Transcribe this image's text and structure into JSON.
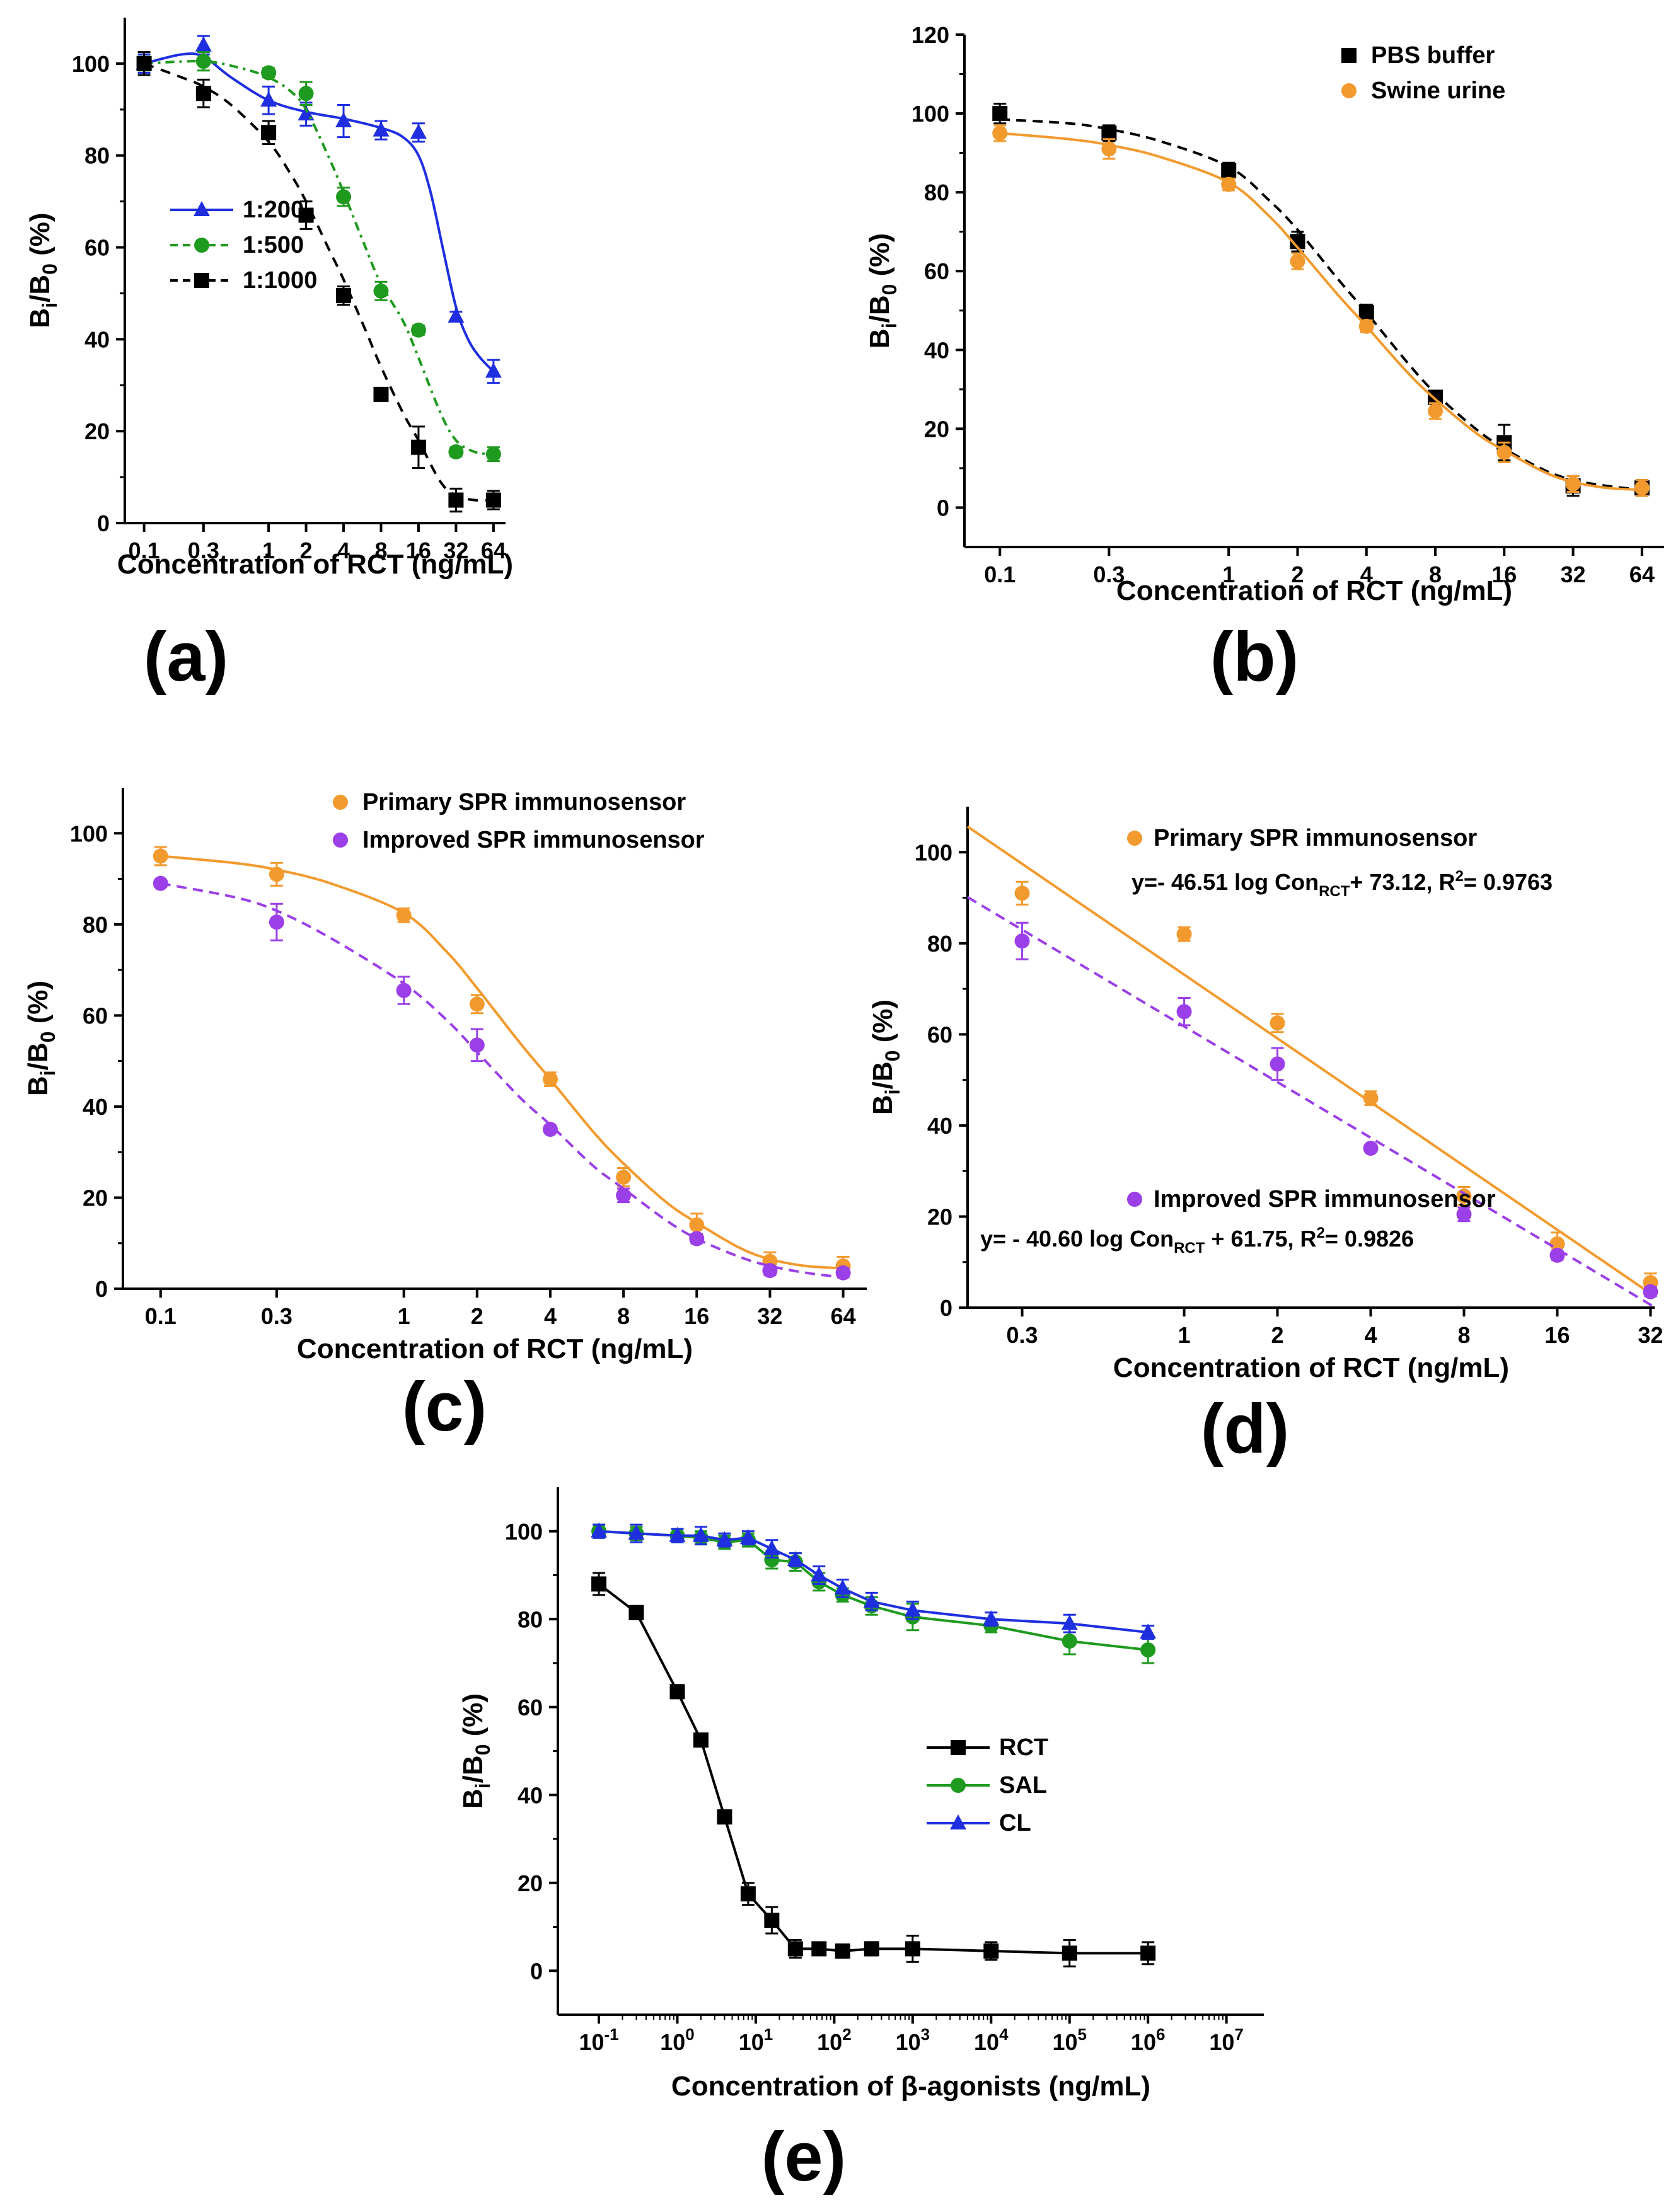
{
  "colors": {
    "black": "#000000",
    "blue": "#1f2fe0",
    "green": "#1e9a1e",
    "orange": "#f39a2e",
    "purple": "#9b3fe8"
  },
  "chart_data": [
    {
      "panel": "a",
      "panel_label": "(a)",
      "type": "line",
      "xscale": "log",
      "xlim": [
        0.07,
        80
      ],
      "ylim": [
        0,
        110
      ],
      "xticks": [
        0.1,
        0.3,
        1,
        2,
        4,
        8,
        16,
        32,
        64
      ],
      "xtick_labels": [
        "0.1",
        "0.3",
        "1",
        "2",
        "4",
        "8",
        "16",
        "32",
        "64"
      ],
      "yticks": [
        0,
        20,
        40,
        60,
        80,
        100
      ],
      "ytick_labels": [
        "0",
        "20",
        "40",
        "60",
        "80",
        "100"
      ],
      "xlabel": "Concentration of RCT (ng/mL)",
      "ylabel": {
        "main": "B",
        "sub1": "i",
        "mid": "/B",
        "sub2": "0",
        "tail": " (%)"
      },
      "legend": "mid-left",
      "series": [
        {
          "name": "1:200",
          "color": "#1f2fe0",
          "marker": "triangle",
          "dash": "",
          "x": [
            0.1,
            0.3,
            1,
            2,
            4,
            8,
            16,
            32,
            64
          ],
          "y": [
            100,
            104,
            92,
            89,
            87.5,
            85.5,
            85,
            45,
            33
          ],
          "err": [
            2,
            2,
            3,
            2.5,
            3.5,
            2,
            2,
            1,
            2.5
          ],
          "fit_x": [
            0.1,
            0.2,
            0.3,
            0.5,
            1,
            2,
            4,
            8,
            12,
            16,
            20,
            25,
            32,
            40,
            50,
            64
          ],
          "fit_y": [
            100,
            102,
            101.5,
            97,
            92,
            89.5,
            88,
            86,
            84,
            80,
            72,
            60,
            47,
            40,
            36,
            33
          ]
        },
        {
          "name": "1:500",
          "color": "#1e9a1e",
          "marker": "circle",
          "dash": "14,8,4,8",
          "x": [
            0.1,
            0.3,
            1,
            2,
            4,
            8,
            16,
            32,
            64
          ],
          "y": [
            100,
            100.5,
            98,
            93.5,
            71,
            50.5,
            42,
            15.5,
            15
          ],
          "err": [
            1.5,
            2,
            1,
            2.5,
            2,
            2,
            1,
            1,
            1.5
          ],
          "fit_x": [
            0.1,
            0.3,
            0.6,
            1,
            1.5,
            2,
            3,
            4,
            6,
            8,
            12,
            16,
            24,
            32,
            45,
            64
          ],
          "fit_y": [
            100,
            100.5,
            99,
            97,
            94,
            90,
            80,
            72,
            60,
            52,
            44,
            36,
            24,
            18,
            15.5,
            15
          ]
        },
        {
          "name": "1:1000",
          "color": "#000000",
          "marker": "square",
          "dash": "16,12",
          "x": [
            0.1,
            0.3,
            1,
            2,
            4,
            8,
            16,
            32,
            64
          ],
          "y": [
            100,
            93.5,
            85,
            67,
            49.5,
            28,
            16.5,
            5,
            5
          ],
          "err": [
            2.5,
            3,
            2.5,
            3,
            2,
            1,
            4.5,
            2.5,
            2
          ],
          "fit_x": [
            0.1,
            0.2,
            0.3,
            0.5,
            1,
            1.5,
            2,
            3,
            4,
            6,
            8,
            12,
            16,
            24,
            32,
            45,
            64
          ],
          "fit_y": [
            100,
            97,
            95,
            91,
            83,
            76,
            70,
            60,
            53,
            42,
            34,
            24,
            18,
            9,
            6,
            5,
            5
          ]
        }
      ]
    },
    {
      "panel": "b",
      "panel_label": "(b)",
      "type": "line",
      "xscale": "log",
      "xlim": [
        0.07,
        80
      ],
      "ylim": [
        -10,
        120
      ],
      "xticks": [
        0.1,
        0.3,
        1,
        2,
        4,
        8,
        16,
        32,
        64
      ],
      "xtick_labels": [
        "0.1",
        "0.3",
        "1",
        "2",
        "4",
        "8",
        "16",
        "32",
        "64"
      ],
      "yticks": [
        0,
        20,
        40,
        60,
        80,
        100,
        120
      ],
      "ytick_labels": [
        "0",
        "20",
        "40",
        "60",
        "80",
        "100",
        "120"
      ],
      "xlabel": "Concentration of RCT (ng/mL)",
      "ylabel": {
        "main": "B",
        "sub1": "i",
        "mid": "/B",
        "sub2": "0",
        "tail": " (%)"
      },
      "legend": "top-center",
      "series": [
        {
          "name": "PBS buffer",
          "color": "#000000",
          "marker": "square",
          "dash": "16,10",
          "x": [
            0.1,
            0.3,
            1,
            2,
            4,
            8,
            16,
            32,
            64
          ],
          "y": [
            100,
            95,
            85.5,
            67.5,
            49.5,
            28,
            16.5,
            5.5,
            5
          ],
          "err": [
            2.5,
            2,
            2,
            2.5,
            2,
            1,
            4.5,
            2.5,
            2
          ],
          "fit_x": [
            0.1,
            0.2,
            0.3,
            0.5,
            1,
            1.5,
            2,
            3,
            4,
            6,
            8,
            12,
            16,
            24,
            32,
            45,
            64
          ],
          "fit_y": [
            98.5,
            97.5,
            96,
            93,
            86.5,
            78,
            70.5,
            58,
            49.5,
            37,
            29,
            20,
            15,
            9.5,
            7,
            5.5,
            4.5
          ]
        },
        {
          "name": "Swine urine",
          "color": "#f39a2e",
          "marker": "circle",
          "dash": "",
          "x": [
            0.1,
            0.3,
            1,
            2,
            4,
            8,
            16,
            32,
            64
          ],
          "y": [
            95,
            91,
            82,
            62.5,
            46,
            24.5,
            14,
            6,
            5
          ],
          "err": [
            2,
            2.5,
            1.5,
            2,
            1.5,
            2,
            2.5,
            2,
            2
          ],
          "fit_x": [
            0.1,
            0.2,
            0.3,
            0.5,
            1,
            1.5,
            2,
            3,
            4,
            6,
            8,
            12,
            16,
            24,
            32,
            45,
            64
          ],
          "fit_y": [
            95,
            93.5,
            92,
            89,
            82.5,
            74,
            66,
            54,
            46,
            34.5,
            27.5,
            19,
            14.5,
            9,
            6.5,
            5,
            4.5
          ]
        }
      ]
    },
    {
      "panel": "c",
      "panel_label": "(c)",
      "type": "line",
      "xscale": "log",
      "xlim": [
        0.07,
        80
      ],
      "ylim": [
        0,
        110
      ],
      "xticks": [
        0.1,
        0.3,
        1,
        2,
        4,
        8,
        16,
        32,
        64
      ],
      "xtick_labels": [
        "0.1",
        "0.3",
        "1",
        "2",
        "4",
        "8",
        "16",
        "32",
        "64"
      ],
      "yticks": [
        0,
        20,
        40,
        60,
        80,
        100
      ],
      "ytick_labels": [
        "0",
        "20",
        "40",
        "60",
        "80",
        "100"
      ],
      "xlabel": "Concentration of RCT (ng/mL)",
      "ylabel": {
        "main": "B",
        "sub1": "i",
        "mid": "/B",
        "sub2": "0",
        "tail": " (%)"
      },
      "legend": "top-center",
      "series": [
        {
          "name": "Primary SPR immunosensor",
          "color": "#f39a2e",
          "marker": "circle",
          "dash": "",
          "x": [
            0.1,
            0.3,
            1,
            2,
            4,
            8,
            16,
            32,
            64
          ],
          "y": [
            95,
            91,
            82,
            62.5,
            46,
            24.5,
            14,
            6,
            5
          ],
          "err": [
            2,
            2.5,
            1.5,
            2,
            1.5,
            2,
            2.5,
            2,
            2
          ],
          "fit_x": [
            0.1,
            0.2,
            0.3,
            0.5,
            1,
            1.5,
            2,
            3,
            4,
            6,
            8,
            12,
            16,
            24,
            32,
            45,
            64
          ],
          "fit_y": [
            95,
            93.5,
            92,
            89,
            82.5,
            74,
            66,
            54,
            46,
            34.5,
            27.5,
            19,
            14.5,
            9,
            6.5,
            5,
            4.5
          ]
        },
        {
          "name": "Improved SPR immunosensor",
          "color": "#9b3fe8",
          "marker": "circle",
          "dash": "16,10",
          "x": [
            0.1,
            0.3,
            1,
            2,
            4,
            8,
            16,
            32,
            64
          ],
          "y": [
            89,
            80.5,
            65.5,
            53.5,
            35,
            20.5,
            11,
            4,
            3.5
          ],
          "err": [
            0.5,
            4,
            3,
            3.5,
            0.5,
            1.5,
            1,
            1,
            1
          ],
          "fit_x": [
            0.1,
            0.2,
            0.3,
            0.5,
            1,
            1.5,
            2,
            3,
            4,
            6,
            8,
            12,
            16,
            24,
            32,
            45,
            64
          ],
          "fit_y": [
            89,
            86,
            83,
            77,
            67,
            59,
            52,
            42,
            36,
            27,
            22,
            15,
            11,
            7,
            5,
            3.5,
            2.5
          ]
        }
      ]
    },
    {
      "panel": "d",
      "panel_label": "(d)",
      "type": "scatter",
      "xscale": "log",
      "xlim": [
        0.2,
        33
      ],
      "ylim": [
        0,
        110
      ],
      "xticks": [
        0.3,
        1,
        2,
        4,
        8,
        16,
        32
      ],
      "xtick_labels": [
        "0.3",
        "1",
        "2",
        "4",
        "8",
        "16",
        "32"
      ],
      "yticks": [
        0,
        20,
        40,
        60,
        80,
        100
      ],
      "ytick_labels": [
        "0",
        "20",
        "40",
        "60",
        "80",
        "100"
      ],
      "xlabel": "Concentration of RCT (ng/mL)",
      "ylabel": {
        "main": "B",
        "sub1": "i",
        "mid": "/B",
        "sub2": "0",
        "tail": " (%)"
      },
      "legend": "top-right",
      "series": [
        {
          "name": "Primary SPR immunosensor",
          "color": "#f39a2e",
          "marker": "circle",
          "dash": "",
          "equation": {
            "pre": "y=- 46.51 log Con",
            "sub": "RCT",
            "post": "+ 73.12, R",
            "sup": "2",
            "end": "= 0.9763"
          },
          "x": [
            0.3,
            1,
            2,
            4,
            8,
            16,
            32
          ],
          "y": [
            91,
            82,
            62.5,
            46,
            24.5,
            14,
            5.5
          ],
          "err": [
            2.5,
            1.5,
            2,
            1.5,
            2,
            2.5,
            2
          ],
          "slope": -46.51,
          "intercept": 73.12
        },
        {
          "name": "Improved SPR immunosensor",
          "color": "#9b3fe8",
          "marker": "circle",
          "dash": "16,10",
          "equation": {
            "pre": "y= - 40.60 log Con",
            "sub": "RCT",
            "post": " + 61.75, R",
            "sup": "2",
            "end": "= 0.9826"
          },
          "x": [
            0.3,
            1,
            2,
            4,
            8,
            16,
            32
          ],
          "y": [
            80.5,
            65,
            53.5,
            35,
            20.5,
            11.5,
            3.5
          ],
          "err": [
            4,
            3,
            3.5,
            0.5,
            1.5,
            1,
            1
          ],
          "slope": -40.6,
          "intercept": 61.75
        }
      ]
    },
    {
      "panel": "e",
      "panel_label": "(e)",
      "type": "line",
      "xscale": "log",
      "xlim": [
        0.03,
        30000000
      ],
      "ylim": [
        -10,
        110
      ],
      "xticks": [
        0.1,
        1,
        10,
        100,
        1000,
        10000,
        100000,
        1000000,
        10000000
      ],
      "xtick_labels": [
        {
          "base": "10",
          "exp": "-1"
        },
        {
          "base": "10",
          "exp": "0"
        },
        {
          "base": "10",
          "exp": "1"
        },
        {
          "base": "10",
          "exp": "2"
        },
        {
          "base": "10",
          "exp": "3"
        },
        {
          "base": "10",
          "exp": "4"
        },
        {
          "base": "10",
          "exp": "5"
        },
        {
          "base": "10",
          "exp": "6"
        },
        {
          "base": "10",
          "exp": "7"
        }
      ],
      "yticks": [
        0,
        20,
        40,
        60,
        80,
        100
      ],
      "ytick_labels": [
        "0",
        "20",
        "40",
        "60",
        "80",
        "100"
      ],
      "xlabel": "Concentration of β-agonists (ng/mL)",
      "ylabel": {
        "main": "B",
        "sub1": "i",
        "mid": "/B",
        "sub2": "0",
        "tail": " (%)"
      },
      "legend": "center-right",
      "series": [
        {
          "name": "RCT",
          "color": "#000000",
          "marker": "square",
          "dash": "",
          "connect": true,
          "x": [
            0.1,
            0.3,
            1,
            2,
            4,
            8,
            16,
            32,
            64,
            128,
            300,
            1000,
            10000,
            100000,
            1000000
          ],
          "y": [
            88,
            81.5,
            63.5,
            52.5,
            35,
            17.5,
            11.5,
            5,
            5,
            4.5,
            5,
            5,
            4.5,
            4,
            4
          ],
          "err": [
            2.5,
            1.5,
            1.5,
            1,
            1.5,
            2.5,
            3,
            2,
            1,
            1.5,
            1.5,
            3,
            2,
            3,
            2.5
          ]
        },
        {
          "name": "SAL",
          "color": "#1e9a1e",
          "marker": "circle",
          "dash": "",
          "connect": true,
          "x": [
            0.1,
            0.3,
            1,
            2,
            4,
            8,
            16,
            32,
            64,
            128,
            300,
            1000,
            10000,
            100000,
            1000000
          ],
          "y": [
            100,
            99.5,
            99,
            98.5,
            97.5,
            98,
            93.5,
            93,
            88.5,
            85.5,
            83,
            80.5,
            78.5,
            75,
            73
          ],
          "err": [
            1.5,
            1.5,
            1.5,
            1.5,
            1.5,
            1.5,
            2,
            2,
            2,
            1.5,
            2,
            3,
            1.5,
            3,
            3
          ]
        },
        {
          "name": "CL",
          "color": "#1f2fe0",
          "marker": "triangle",
          "dash": "",
          "connect": true,
          "x": [
            0.1,
            0.3,
            1,
            2,
            4,
            8,
            16,
            32,
            64,
            128,
            300,
            1000,
            10000,
            100000,
            1000000
          ],
          "y": [
            100,
            99.5,
            99,
            99,
            98,
            98.5,
            96,
            93.5,
            90,
            87,
            84,
            82,
            80,
            79,
            77
          ],
          "err": [
            1.5,
            2,
            1.5,
            2,
            1.5,
            1.5,
            2,
            1.5,
            2,
            2,
            2,
            2,
            1.5,
            2,
            1.5
          ]
        }
      ]
    }
  ]
}
